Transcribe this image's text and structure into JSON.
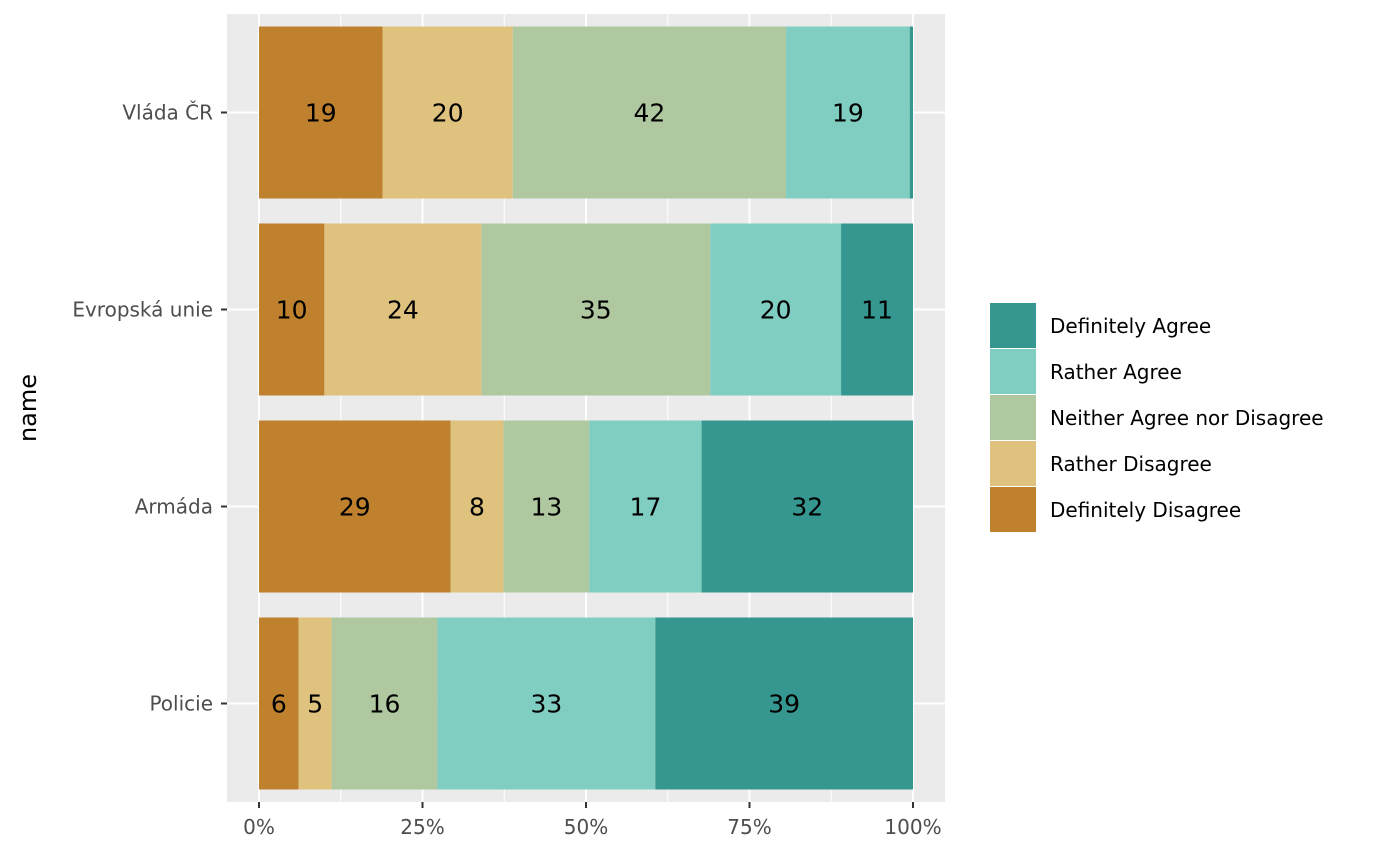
{
  "chart_data": {
    "type": "bar",
    "orientation": "horizontal",
    "stacked": "percent",
    "title": "",
    "xlabel": "",
    "ylabel": "name",
    "xlim": [
      0,
      100
    ],
    "x_ticks": [
      "0%",
      "25%",
      "50%",
      "75%",
      "100%"
    ],
    "categories": [
      "Vláda ČR",
      "Evropská unie",
      "Armáda",
      "Policie"
    ],
    "series": [
      {
        "name": "Definitely Disagree",
        "color": "#BF812D",
        "values": [
          19,
          10,
          29,
          6
        ],
        "labels": [
          "19",
          "10",
          "29",
          "6"
        ]
      },
      {
        "name": "Rather Disagree",
        "color": "#DFC27D",
        "values": [
          20,
          24,
          8,
          5
        ],
        "labels": [
          "20",
          "24",
          "8",
          "5"
        ]
      },
      {
        "name": "Neither Agree nor Disagree",
        "color": "#AFC8A0",
        "values": [
          42,
          35,
          13,
          16
        ],
        "labels": [
          "42",
          "35",
          "13",
          "16"
        ]
      },
      {
        "name": "Rather Agree",
        "color": "#80CDC1",
        "values": [
          19,
          20,
          17,
          33
        ],
        "labels": [
          "19",
          "20",
          "17",
          "33"
        ]
      },
      {
        "name": "Definitely Agree",
        "color": "#35978F",
        "values": [
          0.5,
          11,
          32,
          39
        ],
        "labels": [
          "",
          "11",
          "32",
          "39"
        ]
      }
    ],
    "legend": {
      "placement": "right",
      "order": [
        "Definitely Agree",
        "Rather Agree",
        "Neither Agree nor Disagree",
        "Rather Disagree",
        "Definitely Disagree"
      ]
    },
    "grid": true,
    "panel_background": "#EBEBEB"
  }
}
